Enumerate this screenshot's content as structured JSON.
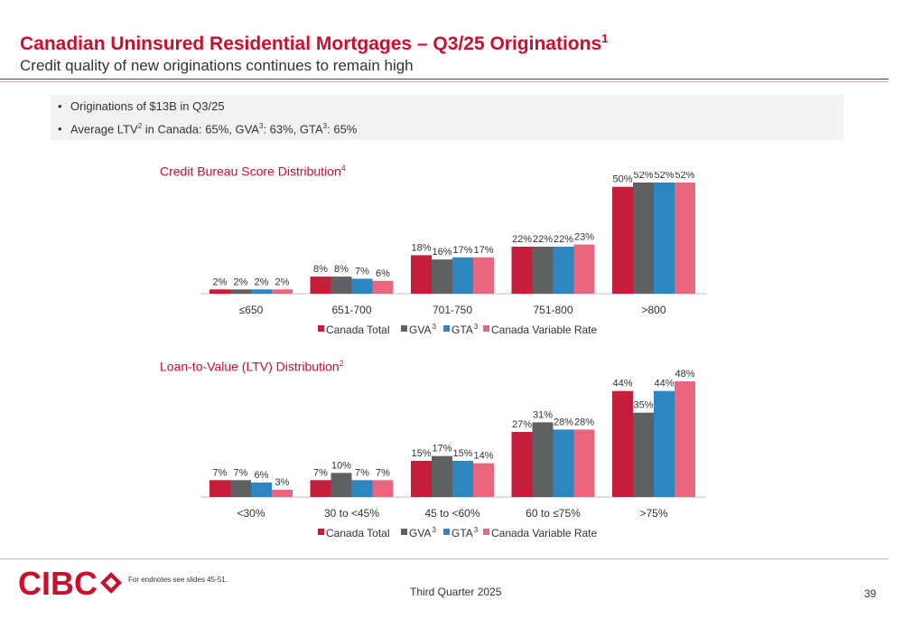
{
  "header": {
    "title": "Canadian Uninsured Residential Mortgages – Q3/25 Originations",
    "title_sup": "1",
    "subtitle": "Credit quality of new originations continues to remain high"
  },
  "bullets": {
    "b1_marker": "•",
    "b1_text": "Originations of $13B in Q3/25",
    "b2_marker": "•",
    "b2_a": "Average LTV",
    "b2_sup1": "2",
    "b2_b": " in Canada: 65%, GVA",
    "b2_sup2": "3",
    "b2_c": ": 63%, GTA",
    "b2_sup3": "3",
    "b2_d": ": 65%"
  },
  "legend": {
    "canada_total": "Canada Total",
    "gva": "GVA",
    "gva_sup": "3",
    "gta": "GTA",
    "gta_sup": "3",
    "canada_variable": "Canada Variable Rate"
  },
  "colors": {
    "brand": "#c8102e",
    "canada_total": "#c41e3a",
    "gva": "#5f6062",
    "gta": "#2e86c1",
    "canada_variable": "#e8677f"
  },
  "chart_data": [
    {
      "type": "bar",
      "title": "Credit Bureau Score Distribution",
      "title_sup": "4",
      "categories": [
        "≤650",
        "651-700",
        "701-750",
        "751-800",
        ">800"
      ],
      "series": [
        {
          "name": "Canada Total",
          "values": [
            2,
            8,
            18,
            22,
            50
          ]
        },
        {
          "name": "GVA",
          "values": [
            2,
            8,
            16,
            22,
            52
          ]
        },
        {
          "name": "GTA",
          "values": [
            2,
            7,
            17,
            22,
            52
          ]
        },
        {
          "name": "Canada Variable Rate",
          "values": [
            2,
            6,
            17,
            23,
            52
          ]
        }
      ],
      "labels": [
        [
          "2%",
          "8%",
          "18%",
          "22%",
          "50%"
        ],
        [
          "2%",
          "8%",
          "16%",
          "22%",
          "52%"
        ],
        [
          "2%",
          "7%",
          "17%",
          "22%",
          "52%"
        ],
        [
          "2%",
          "6%",
          "17%",
          "23%",
          "52%"
        ]
      ],
      "ylim": [
        0,
        52
      ],
      "grid": false,
      "legend_position": "bottom"
    },
    {
      "type": "bar",
      "title": "Loan-to-Value (LTV) Distribution",
      "title_sup": "2",
      "categories": [
        "<30%",
        "30 to <45%",
        "45 to <60%",
        "60 to ≤75%",
        ">75%"
      ],
      "series": [
        {
          "name": "Canada Total",
          "values": [
            7,
            7,
            15,
            27,
            44
          ]
        },
        {
          "name": "GVA",
          "values": [
            7,
            10,
            17,
            31,
            35
          ]
        },
        {
          "name": "GTA",
          "values": [
            6,
            7,
            15,
            28,
            44
          ]
        },
        {
          "name": "Canada Variable Rate",
          "values": [
            3,
            7,
            14,
            28,
            48
          ]
        }
      ],
      "labels": [
        [
          "7%",
          "7%",
          "15%",
          "27%",
          "44%"
        ],
        [
          "7%",
          "10%",
          "17%",
          "31%",
          "35%"
        ],
        [
          "6%",
          "7%",
          "15%",
          "28%",
          "44%"
        ],
        [
          "3%",
          "7%",
          "14%",
          "28%",
          "48%"
        ]
      ],
      "ylim": [
        0,
        48
      ],
      "grid": false,
      "legend_position": "bottom"
    }
  ],
  "footer": {
    "logo_text": "CIBC",
    "endnote": "For endnotes see slides 45-51.",
    "quarter": "Third Quarter 2025",
    "page": "39"
  }
}
